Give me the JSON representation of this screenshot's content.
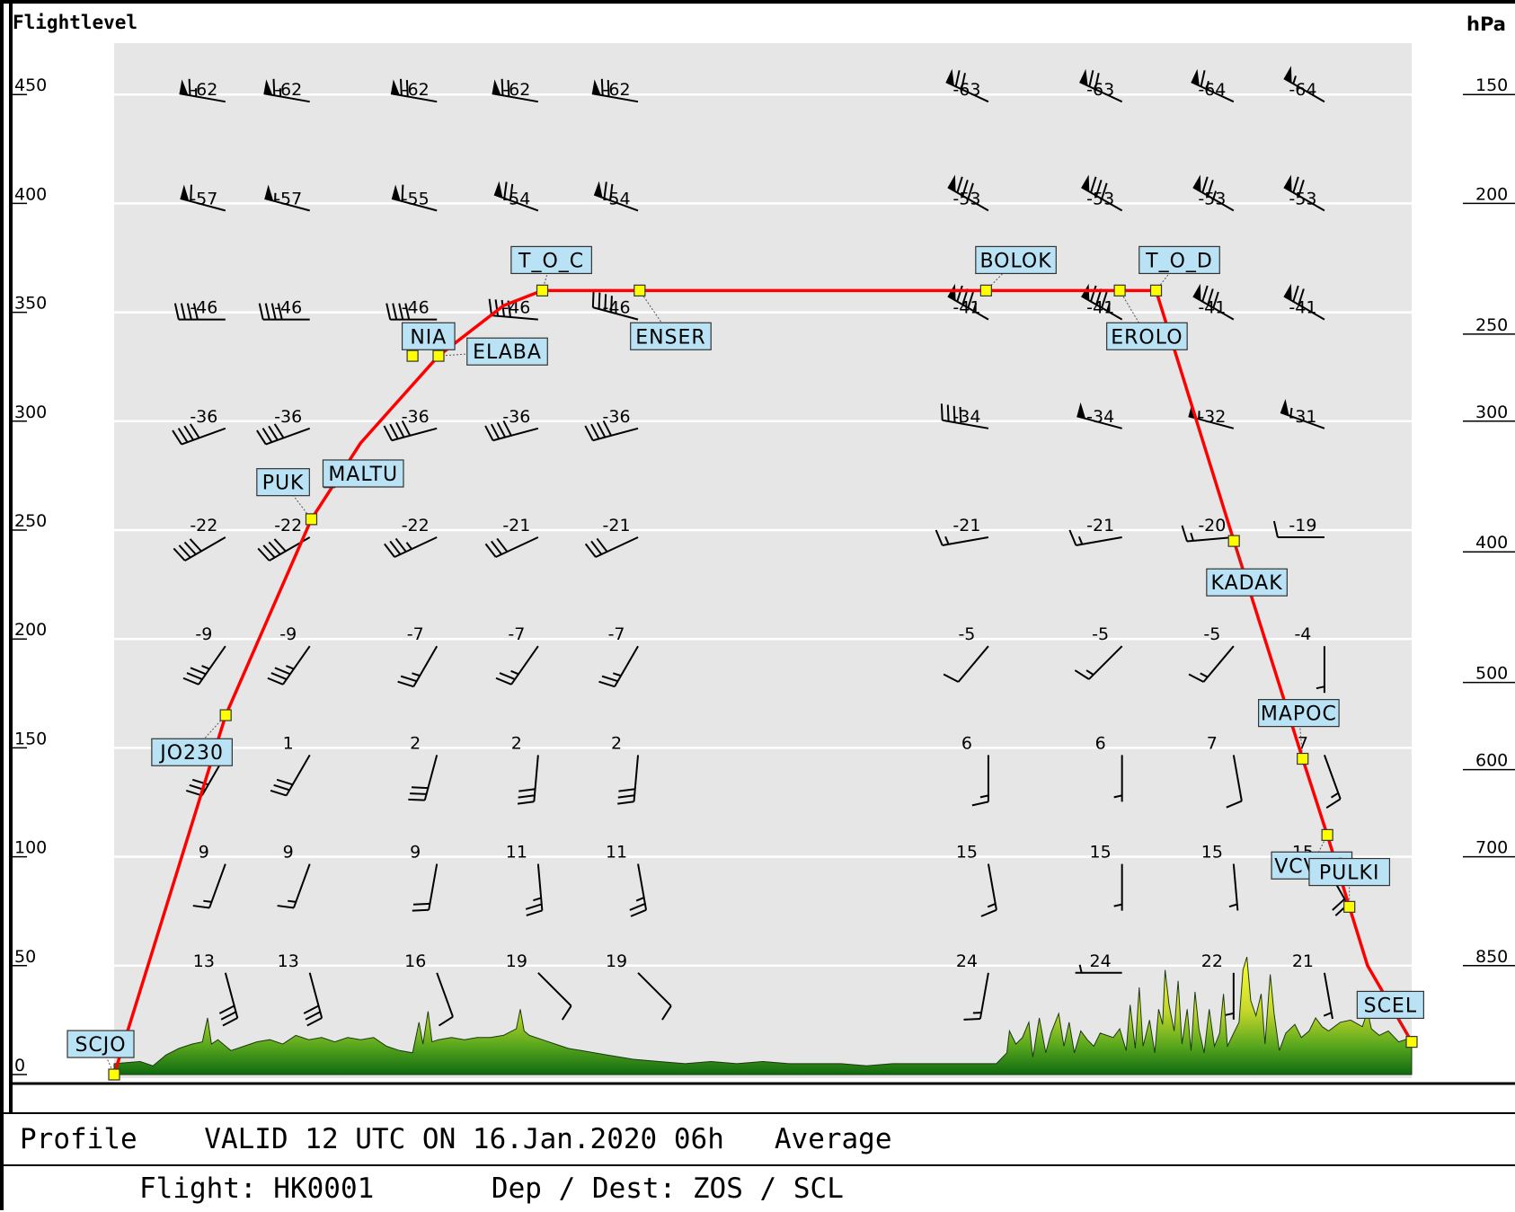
{
  "chart_data": {
    "type": "line",
    "title": "",
    "left_axis_label": "Flightlevel",
    "right_axis_label": "hPa",
    "y_ticks_fl": [
      0,
      50,
      100,
      150,
      200,
      250,
      300,
      350,
      400,
      450
    ],
    "pressure_levels": [
      {
        "hPa": "150",
        "fl": 450
      },
      {
        "hPa": "200",
        "fl": 400
      },
      {
        "hPa": "250",
        "fl": 340
      },
      {
        "hPa": "300",
        "fl": 300
      },
      {
        "hPa": "400",
        "fl": 240
      },
      {
        "hPa": "500",
        "fl": 180
      },
      {
        "hPa": "600",
        "fl": 140
      },
      {
        "hPa": "700",
        "fl": 100
      },
      {
        "hPa": "850",
        "fl": 50
      }
    ],
    "grid_fl": [
      50,
      100,
      150,
      200,
      250,
      300,
      350,
      400,
      450
    ],
    "ylim": [
      -5,
      475
    ],
    "xlim": [
      0,
      100
    ],
    "route": [
      {
        "x": 0.0,
        "fl": 0
      },
      {
        "x": 8.6,
        "fl": 165
      },
      {
        "x": 15.2,
        "fl": 255
      },
      {
        "x": 19.0,
        "fl": 290
      },
      {
        "x": 25.0,
        "fl": 330
      },
      {
        "x": 30.0,
        "fl": 353
      },
      {
        "x": 33.0,
        "fl": 360
      },
      {
        "x": 40.5,
        "fl": 360
      },
      {
        "x": 67.2,
        "fl": 360
      },
      {
        "x": 77.5,
        "fl": 360
      },
      {
        "x": 80.3,
        "fl": 360
      },
      {
        "x": 86.3,
        "fl": 245
      },
      {
        "x": 91.6,
        "fl": 145
      },
      {
        "x": 93.5,
        "fl": 110
      },
      {
        "x": 95.2,
        "fl": 77
      },
      {
        "x": 96.6,
        "fl": 50
      },
      {
        "x": 100.0,
        "fl": 15
      }
    ],
    "waypoints": [
      {
        "name": "SCJO",
        "x": 0.0,
        "fl": 0,
        "lx": -3.6,
        "lfl": 14
      },
      {
        "name": "JO230",
        "x": 8.6,
        "fl": 165,
        "lx": 2.9,
        "lfl": 148
      },
      {
        "name": "PUK",
        "x": 15.2,
        "fl": 255,
        "lx": 11.0,
        "lfl": 272
      },
      {
        "name": "MALTU",
        "x": 16.6,
        "fl": 272,
        "lx": 16.1,
        "lfl": 276
      },
      {
        "name": "NIA",
        "x": 23.0,
        "fl": 330,
        "lx": 22.2,
        "lfl": 339
      },
      {
        "name": "ELABA",
        "x": 25.0,
        "fl": 330,
        "lx": 27.2,
        "lfl": 332
      },
      {
        "name": "T_O_C",
        "x": 33.0,
        "fl": 360,
        "lx": 30.6,
        "lfl": 374
      },
      {
        "name": "ENSER",
        "x": 40.5,
        "fl": 360,
        "lx": 39.8,
        "lfl": 339
      },
      {
        "name": "BOLOK",
        "x": 67.2,
        "fl": 360,
        "lx": 66.4,
        "lfl": 374
      },
      {
        "name": "EROLO",
        "x": 77.5,
        "fl": 360,
        "lx": 76.5,
        "lfl": 339
      },
      {
        "name": "T_O_D",
        "x": 80.3,
        "fl": 360,
        "lx": 79.0,
        "lfl": 374
      },
      {
        "name": "KADAK",
        "x": 86.3,
        "fl": 245,
        "lx": 84.2,
        "lfl": 226
      },
      {
        "name": "MAPOC",
        "x": 91.6,
        "fl": 145,
        "lx": 88.2,
        "lfl": 166
      },
      {
        "name": "VCVRO",
        "x": 93.5,
        "fl": 110,
        "lx": 89.2,
        "lfl": 96
      },
      {
        "name": "PULKI",
        "x": 95.2,
        "fl": 77,
        "lx": 92.1,
        "lfl": 93
      },
      {
        "name": "SCEL",
        "x": 100.0,
        "fl": 15,
        "lx": 95.8,
        "lfl": 32
      }
    ],
    "wind_columns_x": [
      8.3,
      14.8,
      24.6,
      32.4,
      40.1,
      67.1,
      77.4,
      86.0,
      93.0
    ],
    "temperatures": [
      {
        "fl": 450,
        "values": [
          "-62",
          "-62",
          "-62",
          "-62",
          "-62",
          "-63",
          "-63",
          "-64",
          "-64"
        ]
      },
      {
        "fl": 400,
        "values": [
          "-57",
          "-57",
          "-55",
          "-54",
          "-54",
          "-53",
          "-53",
          "-53",
          "-53"
        ]
      },
      {
        "fl": 350,
        "values": [
          "-46",
          "-46",
          "-46",
          "-46",
          "-46",
          "-41",
          "-41",
          "-41",
          "-41"
        ]
      },
      {
        "fl": 300,
        "values": [
          "-36",
          "-36",
          "-36",
          "-36",
          "-36",
          "-34",
          "-34",
          "-32",
          "-31"
        ]
      },
      {
        "fl": 250,
        "values": [
          "-22",
          "-22",
          "-22",
          "-21",
          "-21",
          "-21",
          "-21",
          "-20",
          "-19"
        ]
      },
      {
        "fl": 200,
        "values": [
          "-9",
          "-9",
          "-7",
          "-7",
          "-7",
          "-5",
          "-5",
          "-5",
          "-4"
        ]
      },
      {
        "fl": 150,
        "values": [
          "",
          "1",
          "2",
          "2",
          "2",
          "6",
          "6",
          "7",
          "7"
        ]
      },
      {
        "fl": 100,
        "values": [
          "9",
          "9",
          "9",
          "11",
          "11",
          "15",
          "15",
          "15",
          "15"
        ]
      },
      {
        "fl": 50,
        "values": [
          "13",
          "13",
          "16",
          "19",
          "19",
          "24",
          "24",
          "22",
          "21"
        ]
      }
    ],
    "wind_speed_kt": [
      {
        "fl": 450,
        "values": [
          65,
          65,
          70,
          70,
          70,
          70,
          70,
          65,
          55
        ]
      },
      {
        "fl": 400,
        "values": [
          60,
          55,
          60,
          70,
          70,
          80,
          80,
          75,
          70
        ]
      },
      {
        "fl": 350,
        "values": [
          40,
          40,
          40,
          40,
          40,
          85,
          85,
          80,
          70
        ]
      },
      {
        "fl": 300,
        "values": [
          40,
          40,
          40,
          40,
          40,
          40,
          50,
          55,
          55
        ]
      },
      {
        "fl": 250,
        "values": [
          40,
          40,
          35,
          30,
          30,
          15,
          15,
          15,
          10
        ]
      },
      {
        "fl": 200,
        "values": [
          35,
          35,
          25,
          25,
          25,
          10,
          15,
          15,
          5
        ]
      },
      {
        "fl": 150,
        "values": [
          30,
          30,
          30,
          30,
          30,
          15,
          5,
          10,
          15
        ]
      },
      {
        "fl": 100,
        "values": [
          15,
          15,
          20,
          25,
          25,
          15,
          5,
          5,
          20
        ]
      },
      {
        "fl": 50,
        "values": [
          30,
          30,
          10,
          10,
          10,
          15,
          5,
          5,
          5
        ]
      }
    ],
    "wind_dir_deg": [
      {
        "fl": 450,
        "values": [
          280,
          280,
          280,
          280,
          280,
          295,
          295,
          295,
          300
        ]
      },
      {
        "fl": 400,
        "values": [
          285,
          285,
          285,
          290,
          290,
          300,
          300,
          300,
          300
        ]
      },
      {
        "fl": 350,
        "values": [
          270,
          270,
          270,
          275,
          285,
          300,
          300,
          300,
          300
        ]
      },
      {
        "fl": 300,
        "values": [
          250,
          250,
          255,
          255,
          255,
          280,
          285,
          285,
          290
        ]
      },
      {
        "fl": 250,
        "values": [
          240,
          240,
          245,
          245,
          245,
          260,
          260,
          265,
          270
        ]
      },
      {
        "fl": 200,
        "values": [
          215,
          215,
          210,
          215,
          210,
          220,
          225,
          220,
          180
        ]
      },
      {
        "fl": 150,
        "values": [
          210,
          210,
          195,
          185,
          185,
          180,
          180,
          170,
          160
        ]
      },
      {
        "fl": 100,
        "values": [
          200,
          200,
          190,
          175,
          170,
          170,
          180,
          175,
          150
        ]
      },
      {
        "fl": 50,
        "values": [
          165,
          165,
          160,
          135,
          135,
          190,
          270,
          180,
          170
        ]
      }
    ],
    "terrain": [
      [
        0,
        5
      ],
      [
        2,
        6
      ],
      [
        3,
        4
      ],
      [
        4,
        9
      ],
      [
        5,
        12
      ],
      [
        6,
        14
      ],
      [
        6.8,
        15
      ],
      [
        7.2,
        26
      ],
      [
        7.5,
        14
      ],
      [
        8,
        16
      ],
      [
        9,
        11
      ],
      [
        10,
        13
      ],
      [
        11,
        15
      ],
      [
        12,
        16
      ],
      [
        13,
        14
      ],
      [
        14,
        18
      ],
      [
        15,
        16
      ],
      [
        16,
        17
      ],
      [
        17,
        15
      ],
      [
        18,
        17
      ],
      [
        19,
        16
      ],
      [
        20,
        17
      ],
      [
        21,
        13
      ],
      [
        22,
        11
      ],
      [
        23,
        10
      ],
      [
        23.5,
        24
      ],
      [
        23.8,
        14
      ],
      [
        24.2,
        29
      ],
      [
        24.5,
        15
      ],
      [
        25,
        16
      ],
      [
        26,
        17
      ],
      [
        27,
        16
      ],
      [
        28,
        17
      ],
      [
        29,
        17
      ],
      [
        30,
        18
      ],
      [
        31,
        21
      ],
      [
        31.3,
        30
      ],
      [
        31.6,
        20
      ],
      [
        32,
        18
      ],
      [
        33,
        16
      ],
      [
        34,
        14
      ],
      [
        35,
        12
      ],
      [
        36,
        11
      ],
      [
        37,
        10
      ],
      [
        38,
        9
      ],
      [
        39,
        8
      ],
      [
        40,
        7
      ],
      [
        42,
        6
      ],
      [
        44,
        5
      ],
      [
        46,
        6
      ],
      [
        48,
        5
      ],
      [
        50,
        6
      ],
      [
        52,
        5
      ],
      [
        54,
        5
      ],
      [
        56,
        5
      ],
      [
        58,
        4
      ],
      [
        60,
        5
      ],
      [
        62,
        5
      ],
      [
        64,
        5
      ],
      [
        68,
        5
      ],
      [
        68.8,
        10
      ],
      [
        69,
        20
      ],
      [
        69.5,
        14
      ],
      [
        70,
        17
      ],
      [
        70.5,
        24
      ],
      [
        70.8,
        8
      ],
      [
        71.3,
        26
      ],
      [
        71.8,
        10
      ],
      [
        72.2,
        19
      ],
      [
        72.8,
        28
      ],
      [
        73.2,
        13
      ],
      [
        73.6,
        24
      ],
      [
        74,
        10
      ],
      [
        74.5,
        20
      ],
      [
        75,
        16
      ],
      [
        75.5,
        13
      ],
      [
        76,
        19
      ],
      [
        77,
        17
      ],
      [
        77.5,
        21
      ],
      [
        78,
        11
      ],
      [
        78.3,
        32
      ],
      [
        78.7,
        12
      ],
      [
        79,
        40
      ],
      [
        79.3,
        13
      ],
      [
        79.8,
        25
      ],
      [
        80.2,
        10
      ],
      [
        80.5,
        30
      ],
      [
        80.8,
        23
      ],
      [
        81,
        48
      ],
      [
        81.3,
        32
      ],
      [
        81.7,
        20
      ],
      [
        82,
        43
      ],
      [
        82.3,
        14
      ],
      [
        82.7,
        30
      ],
      [
        83,
        11
      ],
      [
        83.3,
        38
      ],
      [
        83.6,
        21
      ],
      [
        84,
        10
      ],
      [
        84.4,
        30
      ],
      [
        84.8,
        13
      ],
      [
        85.2,
        19
      ],
      [
        85.5,
        37
      ],
      [
        85.8,
        13
      ],
      [
        86.2,
        18
      ],
      [
        86.7,
        24
      ],
      [
        87,
        48
      ],
      [
        87.3,
        54
      ],
      [
        87.6,
        34
      ],
      [
        88,
        27
      ],
      [
        88.4,
        37
      ],
      [
        88.7,
        14
      ],
      [
        89.1,
        46
      ],
      [
        89.4,
        28
      ],
      [
        89.8,
        11
      ],
      [
        90.3,
        19
      ],
      [
        91,
        23
      ],
      [
        91.5,
        17
      ],
      [
        92.1,
        20
      ],
      [
        92.6,
        26
      ],
      [
        93.1,
        22
      ],
      [
        93.6,
        20
      ],
      [
        94.5,
        24
      ],
      [
        95.3,
        25
      ],
      [
        96.2,
        22
      ],
      [
        96.6,
        29
      ],
      [
        96.9,
        21
      ],
      [
        97.5,
        18
      ],
      [
        98.2,
        20
      ],
      [
        99,
        15
      ],
      [
        100,
        17
      ]
    ]
  },
  "footer": {
    "line1": "Profile    VALID 12 UTC ON 16.Jan.2020 06h   Average",
    "line2": "Flight: HK0001       Dep / Dest: ZOS / SCL"
  }
}
